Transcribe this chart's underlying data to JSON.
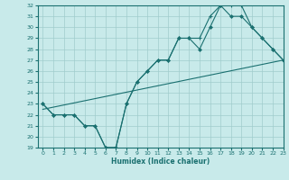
{
  "xlabel": "Humidex (Indice chaleur)",
  "background_color": "#c8eaea",
  "grid_color": "#a0cccc",
  "line_color": "#1a7070",
  "ylim": [
    19,
    32
  ],
  "xlim": [
    -0.5,
    23
  ],
  "yticks": [
    19,
    20,
    21,
    22,
    23,
    24,
    25,
    26,
    27,
    28,
    29,
    30,
    31,
    32
  ],
  "xticks": [
    0,
    1,
    2,
    3,
    4,
    5,
    6,
    7,
    8,
    9,
    10,
    11,
    12,
    13,
    14,
    15,
    16,
    17,
    18,
    19,
    20,
    21,
    22,
    23
  ],
  "line1_x": [
    0,
    1,
    2,
    3,
    4,
    5,
    6,
    7,
    8,
    9,
    10,
    11,
    12,
    13,
    14,
    15,
    16,
    17,
    18,
    19,
    20,
    21,
    22,
    23
  ],
  "line1_y": [
    23,
    22,
    22,
    22,
    21,
    21,
    19,
    19,
    23,
    25,
    26,
    27,
    27,
    29,
    29,
    28,
    30,
    32,
    31,
    31,
    30,
    29,
    28,
    27
  ],
  "line2_x": [
    0,
    1,
    2,
    3,
    4,
    5,
    6,
    7,
    8,
    9,
    10,
    11,
    12,
    13,
    14,
    15,
    16,
    17,
    18,
    19,
    20,
    21,
    22,
    23
  ],
  "line2_y": [
    23,
    22,
    22,
    22,
    21,
    21,
    19,
    19,
    23,
    25,
    26,
    27,
    27,
    29,
    29,
    29,
    31,
    32,
    32,
    32,
    30,
    29,
    28,
    27
  ],
  "trend_x": [
    0,
    23
  ],
  "trend_y": [
    22.5,
    27.0
  ]
}
